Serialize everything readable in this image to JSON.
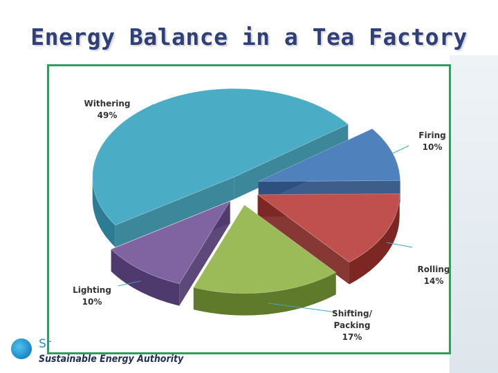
{
  "slide": {
    "title": "Energy Balance in a Tea Factory"
  },
  "footer": {
    "logo_mark": "Sr",
    "organization": "Sustainable Energy Authority"
  },
  "chart_data": {
    "type": "pie",
    "title": "Energy Balance in a Tea Factory",
    "style": "3d-exploded",
    "categories": [
      "Withering",
      "Firing",
      "Rolling",
      "Shifting/ Packing",
      "Lighting"
    ],
    "values": [
      49,
      10,
      14,
      17,
      10
    ],
    "unit": "%",
    "data_labels": [
      {
        "name": "Withering",
        "value": "49%"
      },
      {
        "name": "Firing",
        "value": "10%"
      },
      {
        "name": "Rolling",
        "value": "14%"
      },
      {
        "name": "Shifting/ Packing",
        "value": "17%"
      },
      {
        "name": "Lighting",
        "value": "10%"
      }
    ],
    "colors": [
      "#4bacc6",
      "#4f81bd",
      "#c0504d",
      "#9bbb59",
      "#8064a2"
    ],
    "side_colors": [
      "#2c7d93",
      "#2c4f80",
      "#7d2724",
      "#5f7a2b",
      "#4f3a6e"
    ],
    "legend": "none",
    "grid": false
  }
}
